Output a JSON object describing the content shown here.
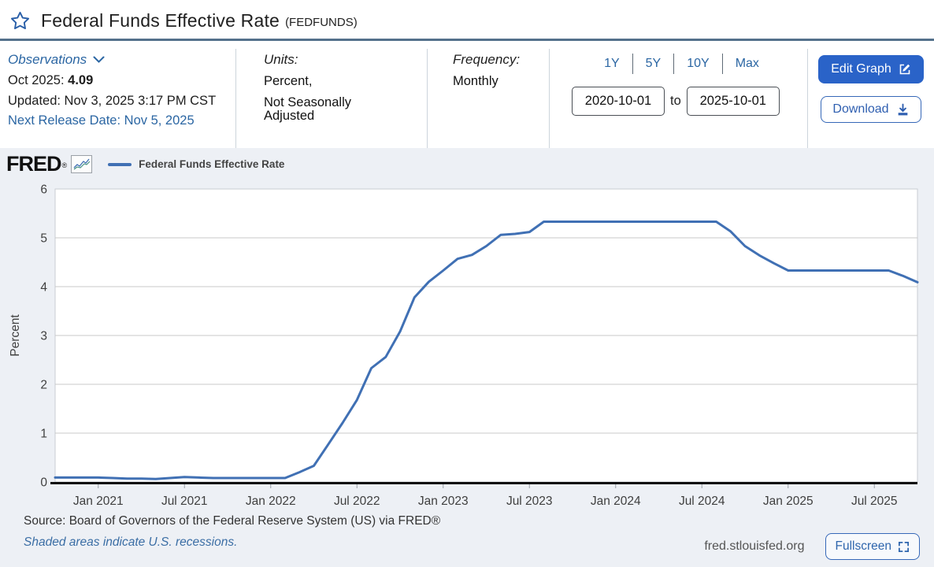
{
  "header": {
    "title": "Federal Funds Effective Rate",
    "series_id": "(FEDFUNDS)"
  },
  "observations": {
    "label": "Observations",
    "latest_period": "Oct 2025:",
    "latest_value": "4.09",
    "updated": "Updated: Nov 3, 2025 3:17 PM CST",
    "next_release": "Next Release Date: Nov 5, 2025"
  },
  "units": {
    "label": "Units:",
    "line1": "Percent,",
    "line2": "Not Seasonally Adjusted"
  },
  "frequency": {
    "label": "Frequency:",
    "value": "Monthly"
  },
  "range": {
    "presets": [
      "1Y",
      "5Y",
      "10Y",
      "Max"
    ],
    "start_date": "2020-10-01",
    "to_label": "to",
    "end_date": "2025-10-01"
  },
  "actions": {
    "edit_graph": "Edit Graph",
    "download": "Download"
  },
  "graph": {
    "brand": "FRED",
    "brand_reg": "®",
    "legend_label": "Federal Funds Effective Rate"
  },
  "footer": {
    "source": "Source: Board of Governors of the Federal Reserve System (US) via FRED®",
    "recession_note": "Shaded areas indicate U.S. recessions.",
    "site": "fred.stlouisfed.org",
    "fullscreen": "Fullscreen"
  },
  "colors": {
    "accent_blue": "#2a63c8",
    "link_blue": "#2b66a3",
    "title_rule": "#54718c",
    "band_bg": "#edf0f5"
  },
  "chart_data": {
    "type": "line",
    "title": "Federal Funds Effective Rate",
    "ylabel": "Percent",
    "ylim": [
      0,
      6
    ],
    "y_ticks": [
      0,
      1,
      2,
      3,
      4,
      5,
      6
    ],
    "grid": true,
    "legend_position": "top-left",
    "x_tick_labels": [
      "Jan 2021",
      "Jul 2021",
      "Jan 2022",
      "Jul 2022",
      "Jan 2023",
      "Jul 2023",
      "Jan 2024",
      "Jul 2024",
      "Jan 2025",
      "Jul 2025"
    ],
    "x_tick_month_index": [
      3,
      9,
      15,
      21,
      27,
      33,
      39,
      45,
      51,
      57
    ],
    "x": [
      "2020-10",
      "2020-11",
      "2020-12",
      "2021-01",
      "2021-02",
      "2021-03",
      "2021-04",
      "2021-05",
      "2021-06",
      "2021-07",
      "2021-08",
      "2021-09",
      "2021-10",
      "2021-11",
      "2021-12",
      "2022-01",
      "2022-02",
      "2022-03",
      "2022-04",
      "2022-05",
      "2022-06",
      "2022-07",
      "2022-08",
      "2022-09",
      "2022-10",
      "2022-11",
      "2022-12",
      "2023-01",
      "2023-02",
      "2023-03",
      "2023-04",
      "2023-05",
      "2023-06",
      "2023-07",
      "2023-08",
      "2023-09",
      "2023-10",
      "2023-11",
      "2023-12",
      "2024-01",
      "2024-02",
      "2024-03",
      "2024-04",
      "2024-05",
      "2024-06",
      "2024-07",
      "2024-08",
      "2024-09",
      "2024-10",
      "2024-11",
      "2024-12",
      "2025-01",
      "2025-02",
      "2025-03",
      "2025-04",
      "2025-05",
      "2025-06",
      "2025-07",
      "2025-08",
      "2025-09",
      "2025-10"
    ],
    "series": [
      {
        "name": "Federal Funds Effective Rate",
        "color": "#4070b4",
        "values": [
          0.09,
          0.09,
          0.09,
          0.09,
          0.08,
          0.07,
          0.07,
          0.06,
          0.08,
          0.1,
          0.09,
          0.08,
          0.08,
          0.08,
          0.08,
          0.08,
          0.08,
          0.2,
          0.33,
          0.77,
          1.21,
          1.68,
          2.33,
          2.56,
          3.08,
          3.78,
          4.1,
          4.33,
          4.57,
          4.65,
          4.83,
          5.06,
          5.08,
          5.12,
          5.33,
          5.33,
          5.33,
          5.33,
          5.33,
          5.33,
          5.33,
          5.33,
          5.33,
          5.33,
          5.33,
          5.33,
          5.33,
          5.13,
          4.83,
          4.64,
          4.48,
          4.33,
          4.33,
          4.33,
          4.33,
          4.33,
          4.33,
          4.33,
          4.33,
          4.22,
          4.09
        ]
      }
    ]
  }
}
